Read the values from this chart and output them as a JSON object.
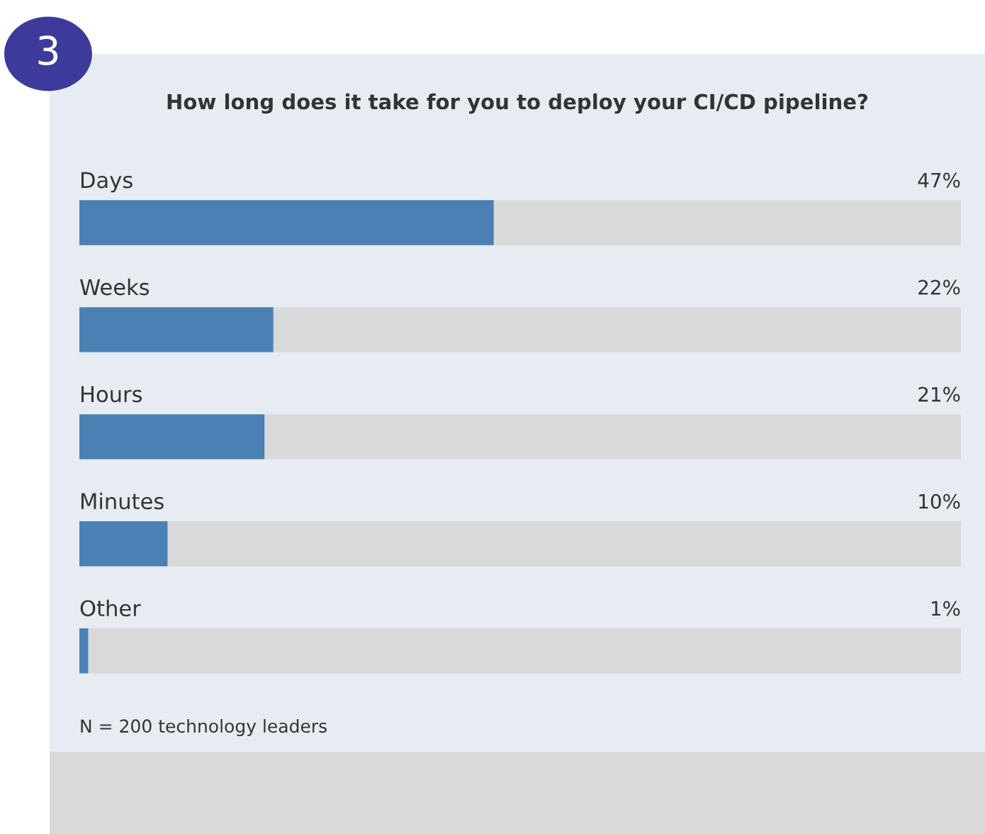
{
  "chart_data": {
    "type": "bar",
    "orientation": "horizontal",
    "title": "How long does it take for you to deploy your CI/CD pipeline?",
    "categories": [
      "Days",
      "Weeks",
      "Hours",
      "Minutes",
      "Other"
    ],
    "values": [
      47,
      22,
      21,
      10,
      1
    ],
    "value_labels": [
      "47%",
      "22%",
      "21%",
      "10%",
      "1%"
    ],
    "color": "#4a80b4",
    "xlim": [
      0,
      100
    ],
    "legend": false,
    "annotations": [
      "3",
      "N = 200 technology leaders"
    ]
  }
}
